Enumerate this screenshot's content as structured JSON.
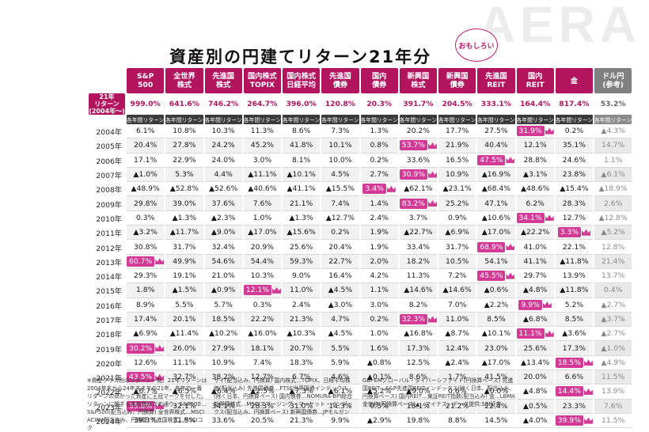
{
  "brand": "AERA",
  "title": "資産別の円建てリターン21年分",
  "badge": "おもしろい",
  "headers": [
    [
      "S&P",
      "500"
    ],
    [
      "全世界",
      "株式"
    ],
    [
      "先進国",
      "株式"
    ],
    [
      "国内株式",
      "TOPIX"
    ],
    [
      "国内株式",
      "日経平均"
    ],
    [
      "先進国",
      "債券"
    ],
    [
      "国内",
      "債券"
    ],
    [
      "新興国",
      "株式"
    ],
    [
      "新興国",
      "債券"
    ],
    [
      "先進国",
      "REIT"
    ],
    [
      "国内",
      "REIT"
    ],
    [
      "金",
      ""
    ],
    [
      "ドル円",
      "(参考)"
    ]
  ],
  "total_label": [
    "21年",
    "リターン",
    "(2004年〜)"
  ],
  "totals": [
    "999.0%",
    "641.6%",
    "746.2%",
    "264.7%",
    "396.0%",
    "120.8%",
    "20.3%",
    "391.7%",
    "204.5%",
    "333.1%",
    "164.4%",
    "817.4%",
    "53.2%"
  ],
  "sub_label": "各年間リターン",
  "rows": [
    {
      "year": "2004年",
      "v": [
        "6.1%",
        "10.8%",
        "10.3%",
        "11.3%",
        "8.6%",
        "7.3%",
        "1.3%",
        "20.2%",
        "17.7%",
        "27.5%",
        "31.9%",
        "0.2%",
        "▲4.3%"
      ],
      "hi": 10
    },
    {
      "year": "2005年",
      "v": [
        "20.4%",
        "27.8%",
        "24.2%",
        "45.2%",
        "41.8%",
        "10.1%",
        "0.8%",
        "53.7%",
        "21.9%",
        "40.4%",
        "12.1%",
        "35.1%",
        "14.7%"
      ],
      "hi": 7
    },
    {
      "year": "2006年",
      "v": [
        "17.1%",
        "22.9%",
        "24.0%",
        "3.0%",
        "8.1%",
        "10.0%",
        "0.2%",
        "33.6%",
        "16.5%",
        "47.5%",
        "28.8%",
        "24.6%",
        "1.1%"
      ],
      "hi": 9
    },
    {
      "year": "2007年",
      "v": [
        "▲1.0%",
        "5.3%",
        "4.4%",
        "▲11.1%",
        "▲10.1%",
        "4.5%",
        "2.7%",
        "30.9%",
        "10.9%",
        "▲16.9%",
        "▲3.1%",
        "23.8%",
        "▲6.1%"
      ],
      "hi": 7
    },
    {
      "year": "2008年",
      "v": [
        "▲48.9%",
        "▲52.8%",
        "▲52.6%",
        "▲40.6%",
        "▲41.1%",
        "▲15.5%",
        "3.4%",
        "▲62.1%",
        "▲23.1%",
        "▲68.4%",
        "▲48.6%",
        "▲15.4%",
        "▲18.9%"
      ],
      "hi": 6
    },
    {
      "year": "2009年",
      "v": [
        "29.8%",
        "39.0%",
        "37.6%",
        "7.6%",
        "21.1%",
        "7.4%",
        "1.4%",
        "83.2%",
        "25.2%",
        "47.1%",
        "6.2%",
        "28.3%",
        "2.6%"
      ],
      "hi": 7
    },
    {
      "year": "2010年",
      "v": [
        "0.3%",
        "▲1.3%",
        "▲2.3%",
        "1.0%",
        "▲1.3%",
        "▲12.7%",
        "2.4%",
        "3.7%",
        "0.9%",
        "▲10.6%",
        "34.1%",
        "12.7%",
        "▲12.8%"
      ],
      "hi": 10
    },
    {
      "year": "2011年",
      "v": [
        "▲3.2%",
        "▲11.7%",
        "▲9.0%",
        "▲17.0%",
        "▲15.6%",
        "0.2%",
        "1.9%",
        "▲22.7%",
        "▲6.9%",
        "▲17.0%",
        "▲22.2%",
        "3.3%",
        "▲5.2%"
      ],
      "hi": 11
    },
    {
      "year": "2012年",
      "v": [
        "30.8%",
        "31.7%",
        "32.4%",
        "20.9%",
        "25.6%",
        "20.4%",
        "1.9%",
        "33.4%",
        "31.7%",
        "68.9%",
        "41.0%",
        "22.1%",
        "12.8%"
      ],
      "hi": 9
    },
    {
      "year": "2013年",
      "v": [
        "60.7%",
        "49.9%",
        "54.6%",
        "54.4%",
        "59.3%",
        "22.7%",
        "2.0%",
        "18.2%",
        "10.5%",
        "54.1%",
        "41.1%",
        "▲11.8%",
        "21.4%"
      ],
      "hi": 0
    },
    {
      "year": "2014年",
      "v": [
        "29.3%",
        "19.1%",
        "21.0%",
        "10.3%",
        "9.0%",
        "16.4%",
        "4.2%",
        "11.3%",
        "7.2%",
        "45.5%",
        "29.7%",
        "13.9%",
        "13.7%"
      ],
      "hi": 9
    },
    {
      "year": "2015年",
      "v": [
        "1.8%",
        "▲1.5%",
        "▲0.9%",
        "12.1%",
        "11.0%",
        "▲4.5%",
        "1.1%",
        "▲14.6%",
        "▲14.6%",
        "▲0.6%",
        "▲4.8%",
        "▲11.8%",
        "0.4%"
      ],
      "hi": 3
    },
    {
      "year": "2016年",
      "v": [
        "8.9%",
        "5.5%",
        "5.7%",
        "0.3%",
        "2.4%",
        "▲3.0%",
        "3.0%",
        "8.2%",
        "7.0%",
        "▲2.2%",
        "9.9%",
        "5.2%",
        "▲2.7%"
      ],
      "hi": 10
    },
    {
      "year": "2017年",
      "v": [
        "17.4%",
        "20.1%",
        "18.5%",
        "22.2%",
        "21.3%",
        "4.7%",
        "0.2%",
        "32.3%",
        "11.0%",
        "8.5%",
        "▲6.8%",
        "8.5%",
        "▲3.7%"
      ],
      "hi": 7
    },
    {
      "year": "2018年",
      "v": [
        "▲6.9%",
        "▲11.4%",
        "▲10.2%",
        "▲16.0%",
        "▲10.3%",
        "▲4.5%",
        "1.0%",
        "▲16.8%",
        "▲8.7%",
        "▲10.1%",
        "11.1%",
        "▲3.6%",
        "▲2.7%"
      ],
      "hi": 10
    },
    {
      "year": "2019年",
      "v": [
        "30.2%",
        "26.0%",
        "27.9%",
        "18.1%",
        "20.7%",
        "5.5%",
        "1.6%",
        "17.3%",
        "12.4%",
        "23.0%",
        "25.6%",
        "17.3%",
        "▲1.0%"
      ],
      "hi": 0
    },
    {
      "year": "2020年",
      "v": [
        "12.6%",
        "11.1%",
        "10.9%",
        "7.4%",
        "18.3%",
        "5.9%",
        "▲0.8%",
        "12.5%",
        "▲2.4%",
        "▲17.0%",
        "▲13.4%",
        "18.5%",
        "▲4.9%"
      ],
      "hi": 11
    },
    {
      "year": "2021年",
      "v": [
        "43.5%",
        "32.7%",
        "38.2%",
        "12.7%",
        "6.7%",
        "4.6%",
        "▲0.1%",
        "8.6%",
        "1.7%",
        "41.5%",
        "20.0%",
        "6.6%",
        "11.5%"
      ],
      "hi": 0
    },
    {
      "year": "2022年",
      "v": [
        "▲6.7%",
        "▲6.5%",
        "▲6.4%",
        "▲2.5%",
        "▲7.3%",
        "▲6.1%",
        "▲5.2%",
        "▲9.0%",
        "0.6%",
        "▲0.0%",
        "▲4.8%",
        "14.4%",
        "13.9%"
      ],
      "hi": 11
    },
    {
      "year": "2023年",
      "v": [
        "35.8%",
        "32.1%",
        "34.1%",
        "28.3%",
        "31.0%",
        "14.3%",
        "0.5%",
        "18.1%",
        "21.2%",
        "22.4%",
        "▲0.5%",
        "23.3%",
        "7.6%"
      ],
      "hi": 0
    },
    {
      "year": "2024年",
      "v": [
        "39.3%",
        "31.5%",
        "33.6%",
        "20.5%",
        "21.3%",
        "9.9%",
        "▲2.9%",
        "19.8%",
        "8.8%",
        "14.5%",
        "▲4.0%",
        "39.9%",
        "11.5%"
      ],
      "hi": 11
    }
  ],
  "notes": [
    "※資産クラス別のリターン一覧。21年リターンは2004年末から24年末までの21年。各年で一番リターンの高かった資産に王冠マークを付した。リターンに関する各指数は次の通り。S&P500…S&P500(配当込み、円換算) 全世界株式…MSCI ACWI(配当込み、円換算) 先進国株式…MSCIコク",
    "サイ(配当込み、円換算) 国内株式…TOPIX、日経平均株価(配当込み) 先進国債券…FTSE世界国債インデックス(除く日本、円換算ベース) 国内債券…NOMURA-BPI総合 新興国株式…MSCIエマージング・マーケット・インデックス(配当込み、円換算ベース) 新興国債券…JPモルガン",
    "GBI-EMグローバル・ダイバーシファイド(円換算ベース) 先進国REIT…S&P先進国REITインデックス(除く日本、配当込み、円換算ベース) 国内REIT…東証REIT指数(配当込み) 金…LBMA金価格(円換算ベース)▲…マイナス。データ提供:SBI証券"
  ]
}
